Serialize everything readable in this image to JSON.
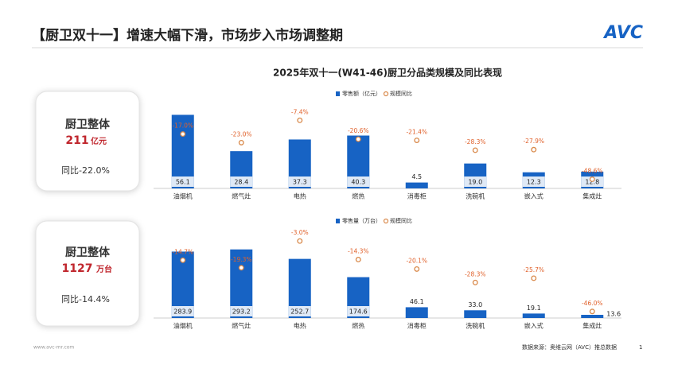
{
  "header": {
    "title": "【厨卫双十一】增速大幅下滑，市场步入市场调整期",
    "logo": "AVC"
  },
  "cards": [
    {
      "title": "厨卫整体",
      "value": "211",
      "unit": "亿元",
      "yoy": "同比-22.0%"
    },
    {
      "title": "厨卫整体",
      "value": "1127",
      "unit": "万台",
      "yoy": "同比-14.4%"
    }
  ],
  "chart_data": [
    {
      "type": "bar",
      "title": "2025年双十一(W41-46)厨卫分品类规模及同比表现",
      "categories": [
        "油烟机",
        "燃气灶",
        "电热",
        "燃热",
        "消毒柜",
        "洗碗机",
        "嵌入式",
        "集成灶"
      ],
      "ylim": [
        0,
        60
      ],
      "y2lim": [
        -55,
        0
      ],
      "series": [
        {
          "name": "零售额（亿元）",
          "color": "#1763c4",
          "values": [
            56.1,
            28.4,
            37.3,
            40.3,
            4.5,
            19.0,
            12.3,
            12.8
          ],
          "value_labels": [
            "56.1",
            "28.4",
            "37.3",
            "40.3",
            "4.5",
            "19.0",
            "12.3",
            "12.8"
          ]
        },
        {
          "name": "规模同比",
          "axis": "y2",
          "color": "#d9894a",
          "values": [
            -17.0,
            -23.0,
            -7.4,
            -20.6,
            -21.4,
            -28.3,
            -27.9,
            -48.6
          ],
          "value_labels": [
            "-17.0%",
            "-23.0%",
            "-7.4%",
            "-20.6%",
            "-21.4%",
            "-28.3%",
            "-27.9%",
            "-48.6%"
          ]
        }
      ]
    },
    {
      "type": "bar",
      "categories": [
        "油烟机",
        "燃气灶",
        "电热",
        "燃热",
        "消毒柜",
        "洗碗机",
        "嵌入式",
        "集成灶"
      ],
      "ylim": [
        0,
        350
      ],
      "y2lim": [
        -50,
        0
      ],
      "series": [
        {
          "name": "零售量（万台）",
          "color": "#1763c4",
          "values": [
            283.9,
            293.2,
            252.7,
            174.6,
            46.1,
            33.0,
            19.1,
            13.6
          ],
          "value_labels": [
            "283.9",
            "293.2",
            "252.7",
            "174.6",
            "46.1",
            "33.0",
            "19.1",
            "13.6"
          ]
        },
        {
          "name": "规模同比",
          "axis": "y2",
          "color": "#d9894a",
          "values": [
            -14.7,
            -19.3,
            -3.0,
            -14.3,
            -20.1,
            -28.3,
            -25.7,
            -46.0
          ],
          "value_labels": [
            "-14.7%",
            "-19.3%",
            "-3.0%",
            "-14.3%",
            "-20.1%",
            "-28.3%",
            "-25.7%",
            "-46.0%"
          ]
        }
      ]
    }
  ],
  "footer": {
    "site": "www.avc-mr.com",
    "source": "数据来源：奥维云网（AVC）推总数据",
    "page": "1"
  }
}
